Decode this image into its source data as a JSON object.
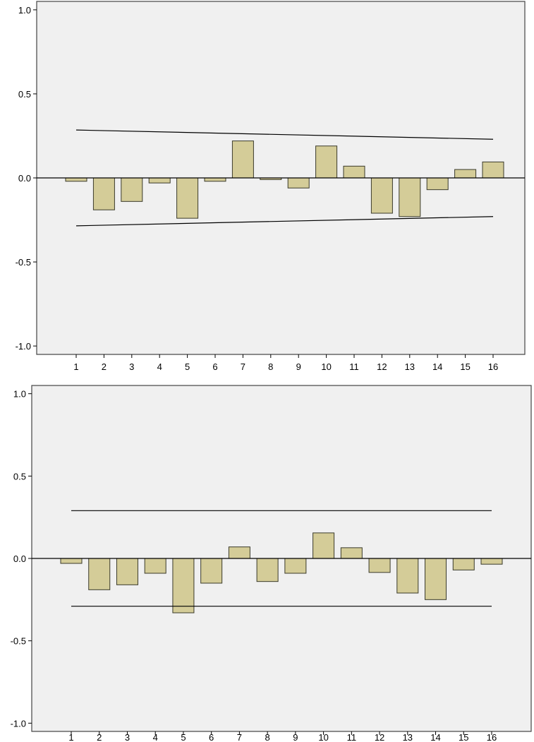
{
  "chart_data": [
    {
      "type": "bar",
      "title": "",
      "xlabel": "",
      "ylabel": "",
      "categories": [
        "1",
        "2",
        "3",
        "4",
        "5",
        "6",
        "7",
        "8",
        "9",
        "10",
        "11",
        "12",
        "13",
        "14",
        "15",
        "16"
      ],
      "values": [
        -0.02,
        -0.19,
        -0.14,
        -0.03,
        -0.24,
        -0.02,
        0.22,
        -0.01,
        -0.06,
        0.19,
        0.07,
        -0.21,
        -0.23,
        -0.07,
        0.05,
        0.095
      ],
      "ylim": [
        -1.05,
        1.05
      ],
      "yticks": [
        "1.0",
        "0.5",
        "0.0",
        "-0.5",
        "-1.0"
      ],
      "ytick_values": [
        1.0,
        0.5,
        0.0,
        -0.5,
        -1.0
      ],
      "upper_limit": [
        0.285,
        0.23
      ],
      "lower_limit": [
        -0.285,
        -0.23
      ],
      "grid": false,
      "colors": {
        "bar_fill": "#d4cc98",
        "bar_stroke": "#3a3a2a",
        "plot_bg": "#f0f0f0",
        "line": "#000000"
      }
    },
    {
      "type": "bar",
      "title": "",
      "xlabel": "",
      "ylabel": "",
      "categories": [
        "1",
        "2",
        "3",
        "4",
        "5",
        "6",
        "7",
        "8",
        "9",
        "10",
        "11",
        "12",
        "13",
        "14",
        "15",
        "16"
      ],
      "values": [
        -0.03,
        -0.19,
        -0.16,
        -0.09,
        -0.33,
        -0.15,
        0.07,
        -0.14,
        -0.09,
        0.155,
        0.065,
        -0.085,
        -0.21,
        -0.25,
        -0.07,
        -0.035
      ],
      "ylim": [
        -1.05,
        1.05
      ],
      "yticks": [
        "1.0",
        "0.5",
        "0.0",
        "-0.5",
        "-1.0"
      ],
      "ytick_values": [
        1.0,
        0.5,
        0.0,
        -0.5,
        -1.0
      ],
      "upper_limit": [
        0.29,
        0.29
      ],
      "lower_limit": [
        -0.29,
        -0.29
      ],
      "grid": false,
      "colors": {
        "bar_fill": "#d4cc98",
        "bar_stroke": "#3a3a2a",
        "plot_bg": "#f0f0f0",
        "line": "#000000"
      }
    }
  ]
}
